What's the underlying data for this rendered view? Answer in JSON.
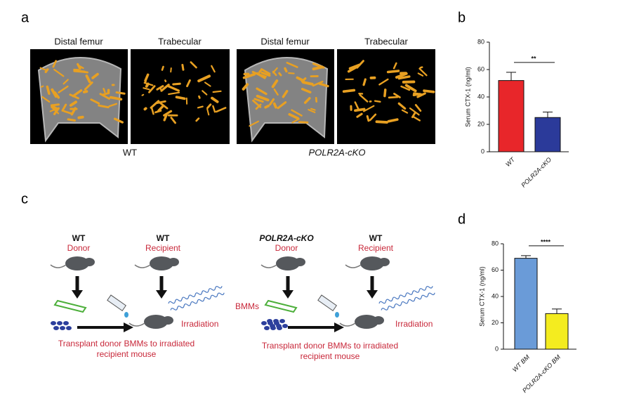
{
  "panels": {
    "a": {
      "letter": "a",
      "image_labels": [
        "Distal femur",
        "Trabecular",
        "Distal femur",
        "Trabecular"
      ],
      "groups": [
        "WT",
        "POLR2A-cKO"
      ]
    },
    "c": {
      "letter": "c",
      "left": {
        "donor_genotype": "WT",
        "donor": "Donor",
        "recipient_genotype": "WT",
        "recipient": "Recipient",
        "irradiation": "Irradiation",
        "caption": [
          "Transplant donor BMMs to irradiated",
          "recipient mouse"
        ]
      },
      "right": {
        "donor_genotype": "POLR2A-cKO",
        "donor": "Donor",
        "recipient_genotype": "WT",
        "recipient": "Recipient",
        "bmms": "BMMs",
        "irradiation": "Irradiation",
        "caption": [
          "Transplant donor BMMs to irradiated",
          "recipient mouse"
        ]
      }
    }
  },
  "chart_data": [
    {
      "type": "bar",
      "panel": "b",
      "y_label": "Serum CTX-1 (ng/ml)",
      "categories": [
        "WT",
        "POLR2A-cKO"
      ],
      "values": [
        52,
        25
      ],
      "errors": [
        6,
        4
      ],
      "colors": [
        "#e8262a",
        "#2b3a9a"
      ],
      "ylim": [
        0,
        80
      ],
      "yticks": [
        0,
        20,
        40,
        60,
        80
      ],
      "significance": "**"
    },
    {
      "type": "bar",
      "panel": "d",
      "y_label": "Serum CTX-1 (ng/ml)",
      "categories": [
        "WT BM",
        "POLR2A-cKO BM"
      ],
      "values": [
        69,
        27
      ],
      "errors": [
        2,
        3.5
      ],
      "colors": [
        "#6a9bd8",
        "#f4ec1f"
      ],
      "ylim": [
        0,
        80
      ],
      "yticks": [
        0,
        20,
        40,
        60,
        80
      ],
      "significance": "****"
    }
  ]
}
